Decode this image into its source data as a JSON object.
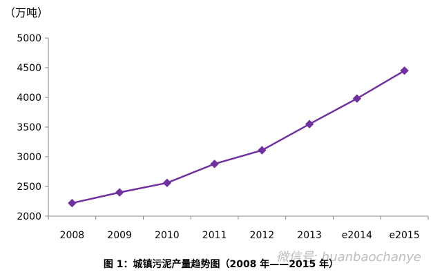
{
  "chart_data": {
    "type": "line",
    "unit_label": "（万吨）",
    "categories": [
      "2008",
      "2009",
      "2010",
      "2011",
      "2012",
      "2013",
      "e2014",
      "e2015"
    ],
    "series": [
      {
        "values": [
          2220,
          2400,
          2560,
          2880,
          3110,
          3550,
          3980,
          4450
        ],
        "color": "#7030A0"
      }
    ],
    "yticks": [
      "2000",
      "2500",
      "3000",
      "3500",
      "4000",
      "4500",
      "5000"
    ],
    "ylim": [
      2000,
      5000
    ],
    "grid": false,
    "legend": "none"
  },
  "caption": "图 1：城镇污泥产量趋势图（2008 年——2015 年）",
  "watermark": "微信号: huanbaochanye"
}
